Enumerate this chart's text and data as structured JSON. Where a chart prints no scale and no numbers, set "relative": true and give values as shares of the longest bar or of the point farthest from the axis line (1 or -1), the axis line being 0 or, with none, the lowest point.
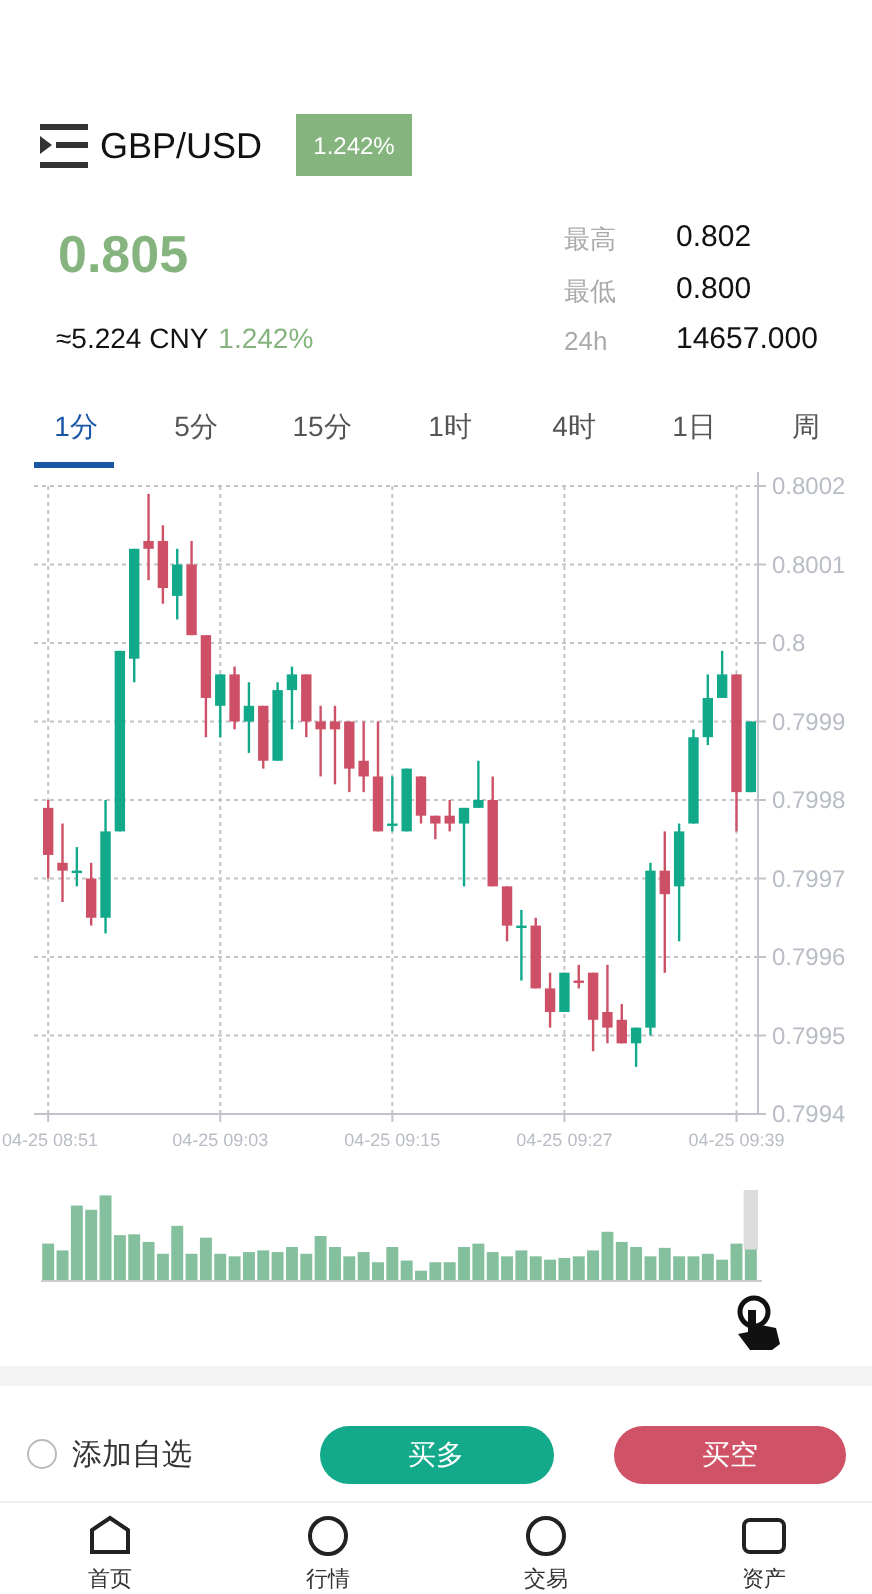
{
  "chart_data": [
    {
      "type": "other",
      "title": "GBP/USD",
      "annotations": [
        "1.242%",
        "0.805",
        "≈5.224 CNY",
        "1.242%",
        "最高",
        "0.802",
        "最低",
        "0.800",
        "24h",
        "14657.000",
        "1分",
        "5分",
        "15分",
        "1时",
        "4时",
        "1日",
        "周"
      ]
    },
    {
      "type": "candlestick",
      "categories": [
        "04-25 08:51",
        null,
        null,
        null,
        null,
        null,
        null,
        null,
        null,
        null,
        null,
        null,
        "04-25 09:03",
        null,
        null,
        null,
        null,
        null,
        null,
        null,
        null,
        null,
        null,
        null,
        "04-25 09:15",
        null,
        null,
        null,
        null,
        null,
        null,
        null,
        null,
        null,
        null,
        null,
        "04-25 09:27",
        null,
        null,
        null,
        null,
        null,
        null,
        null,
        null,
        null,
        null,
        null,
        "04-25 09:39",
        null
      ],
      "ohlc": [
        [
          0.79979,
          0.7998,
          0.7997,
          0.79973
        ],
        [
          0.79972,
          0.79977,
          0.79967,
          0.79971
        ],
        [
          0.79971,
          0.79974,
          0.79969,
          0.79971
        ],
        [
          0.7997,
          0.79972,
          0.79964,
          0.79965
        ],
        [
          0.79965,
          0.7998,
          0.79963,
          0.79976
        ],
        [
          0.79976,
          0.79999,
          0.79976,
          0.79999
        ],
        [
          0.79998,
          0.80012,
          0.79995,
          0.80012
        ],
        [
          0.80013,
          0.80019,
          0.80008,
          0.80012
        ],
        [
          0.80013,
          0.80015,
          0.80005,
          0.80007
        ],
        [
          0.80006,
          0.80012,
          0.80003,
          0.8001
        ],
        [
          0.8001,
          0.80013,
          0.80001,
          0.80001
        ],
        [
          0.80001,
          0.80001,
          0.79988,
          0.79993
        ],
        [
          0.79992,
          0.79996,
          0.79988,
          0.79996
        ],
        [
          0.79996,
          0.79997,
          0.79989,
          0.7999
        ],
        [
          0.7999,
          0.79995,
          0.79986,
          0.79992
        ],
        [
          0.79992,
          0.79992,
          0.79984,
          0.79985
        ],
        [
          0.79985,
          0.79995,
          0.79985,
          0.79994
        ],
        [
          0.79994,
          0.79997,
          0.79989,
          0.79996
        ],
        [
          0.79996,
          0.79996,
          0.79988,
          0.7999
        ],
        [
          0.7999,
          0.79992,
          0.79983,
          0.79989
        ],
        [
          0.7999,
          0.79992,
          0.79982,
          0.79989
        ],
        [
          0.7999,
          0.7999,
          0.79981,
          0.79984
        ],
        [
          0.79985,
          0.7999,
          0.79981,
          0.79983
        ],
        [
          0.79983,
          0.7999,
          0.79976,
          0.79976
        ],
        [
          0.79977,
          0.79983,
          0.79976,
          0.79977
        ],
        [
          0.79976,
          0.79984,
          0.79976,
          0.79984
        ],
        [
          0.79983,
          0.79983,
          0.79977,
          0.79978
        ],
        [
          0.79978,
          0.79978,
          0.79975,
          0.79977
        ],
        [
          0.79978,
          0.7998,
          0.79976,
          0.79977
        ],
        [
          0.79977,
          0.79979,
          0.79969,
          0.79979
        ],
        [
          0.79979,
          0.79985,
          0.79979,
          0.7998
        ],
        [
          0.7998,
          0.79983,
          0.79969,
          0.79969
        ],
        [
          0.79969,
          0.79969,
          0.79962,
          0.79964
        ],
        [
          0.79964,
          0.79966,
          0.79957,
          0.79964
        ],
        [
          0.79964,
          0.79965,
          0.79956,
          0.79956
        ],
        [
          0.79956,
          0.79958,
          0.79951,
          0.79953
        ],
        [
          0.79953,
          0.79958,
          0.79953,
          0.79958
        ],
        [
          0.79957,
          0.79959,
          0.79956,
          0.79957
        ],
        [
          0.79958,
          0.79958,
          0.79948,
          0.79952
        ],
        [
          0.79953,
          0.79959,
          0.79949,
          0.79951
        ],
        [
          0.79952,
          0.79954,
          0.79949,
          0.79949
        ],
        [
          0.79949,
          0.79951,
          0.79946,
          0.79951
        ],
        [
          0.79951,
          0.79972,
          0.7995,
          0.79971
        ],
        [
          0.79971,
          0.79976,
          0.79958,
          0.79968
        ],
        [
          0.79969,
          0.79977,
          0.79962,
          0.79976
        ],
        [
          0.79977,
          0.79989,
          0.79977,
          0.79988
        ],
        [
          0.79988,
          0.79996,
          0.79987,
          0.79993
        ],
        [
          0.79993,
          0.79999,
          0.79993,
          0.79996
        ],
        [
          0.79996,
          0.79996,
          0.79976,
          0.79981
        ],
        [
          0.79981,
          0.7999,
          0.79981,
          0.7999
        ]
      ],
      "colors": [
        "#cd5067",
        "#cd5067",
        "#12a98b",
        "#cd5067",
        "#12a98b",
        "#12a98b",
        "#12a98b",
        "#cd5067",
        "#cd5067",
        "#12a98b",
        "#cd5067",
        "#cd5067",
        "#12a98b",
        "#cd5067",
        "#12a98b",
        "#cd5067",
        "#12a98b",
        "#12a98b",
        "#cd5067",
        "#cd5067",
        "#cd5067",
        "#cd5067",
        "#cd5067",
        "#cd5067",
        "#12a98b",
        "#12a98b",
        "#cd5067",
        "#cd5067",
        "#cd5067",
        "#12a98b",
        "#12a98b",
        "#cd5067",
        "#cd5067",
        "#12a98b",
        "#cd5067",
        "#cd5067",
        "#12a98b",
        "#cd5067",
        "#cd5067",
        "#cd5067",
        "#cd5067",
        "#12a98b",
        "#12a98b",
        "#cd5067",
        "#12a98b",
        "#12a98b",
        "#12a98b",
        "#12a98b",
        "#cd5067",
        "#12a98b"
      ],
      "ylim": [
        0.7994,
        0.8002
      ],
      "yticks": [
        0.8002,
        0.8001,
        0.8,
        0.7999,
        0.7998,
        0.7997,
        0.7996,
        0.7995,
        0.7994
      ],
      "grid": true
    },
    {
      "type": "bar",
      "relative": true,
      "color": "#84c09e",
      "categories": [
        null,
        null,
        null,
        null,
        null,
        null,
        null,
        null,
        null,
        null,
        null,
        null,
        null,
        null,
        null,
        null,
        null,
        null,
        null,
        null,
        null,
        null,
        null,
        null,
        null,
        null,
        null,
        null,
        null,
        null,
        null,
        null,
        null,
        null,
        null,
        null,
        null,
        null,
        null,
        null,
        null,
        null,
        null,
        null,
        null,
        null,
        null,
        null,
        null,
        null
      ],
      "values": [
        0.43,
        0.35,
        0.88,
        0.83,
        1,
        0.53,
        0.54,
        0.45,
        0.31,
        0.64,
        0.31,
        0.5,
        0.31,
        0.28,
        0.33,
        0.35,
        0.33,
        0.39,
        0.31,
        0.52,
        0.39,
        0.28,
        0.33,
        0.21,
        0.39,
        0.23,
        0.11,
        0.21,
        0.21,
        0.39,
        0.43,
        0.33,
        0.28,
        0.35,
        0.28,
        0.24,
        0.26,
        0.28,
        0.35,
        0.57,
        0.45,
        0.39,
        0.28,
        0.38,
        0.28,
        0.28,
        0.31,
        0.24,
        0.43,
        0.36
      ]
    },
    {
      "type": "other",
      "annotations": [
        "添加自选",
        "买多",
        "买空",
        "首页",
        "行情",
        "交易",
        "资产"
      ]
    }
  ]
}
